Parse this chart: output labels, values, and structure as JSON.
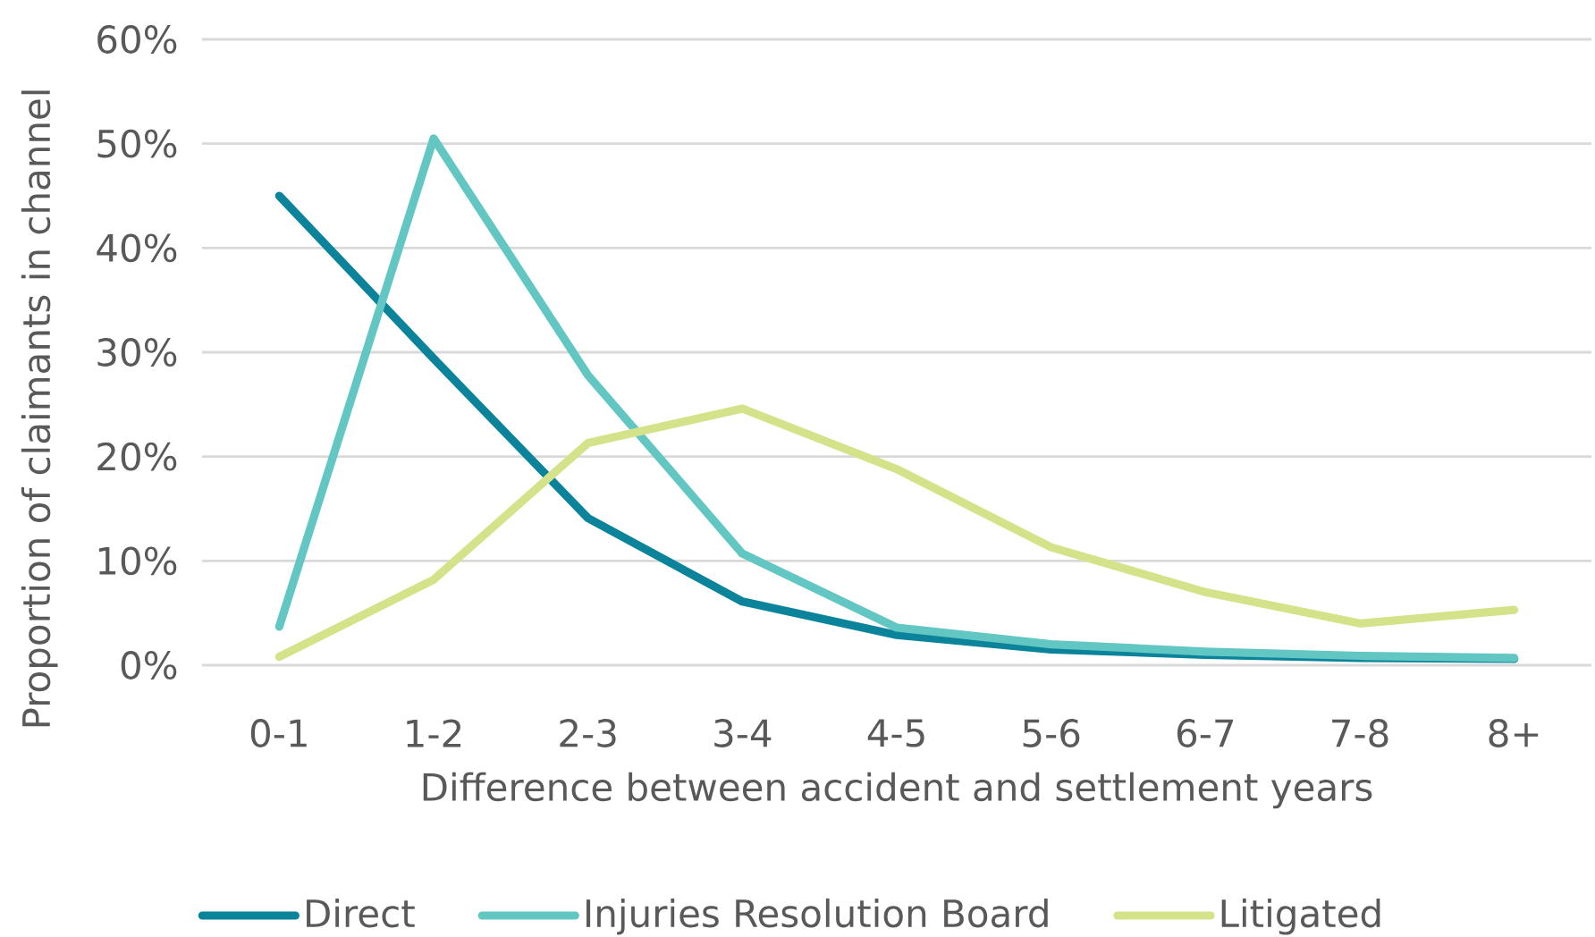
{
  "chart_data": {
    "type": "line",
    "xlabel": "Difference between accident and settlement years",
    "ylabel": "Proportion of claimants in channel",
    "categories": [
      "0-1",
      "1-2",
      "2-3",
      "3-4",
      "4-5",
      "5-6",
      "6-7",
      "7-8",
      "8+"
    ],
    "series": [
      {
        "name": "Direct",
        "color": "#0a839b",
        "values": [
          45.0,
          29.4,
          14.1,
          6.1,
          2.9,
          1.5,
          1.0,
          0.7,
          0.6
        ]
      },
      {
        "name": "Injuries Resolution Board",
        "color": "#62c6c2",
        "values": [
          3.7,
          50.5,
          27.8,
          10.7,
          3.6,
          2.0,
          1.3,
          0.9,
          0.7
        ]
      },
      {
        "name": "Litigated",
        "color": "#d4e389",
        "values": [
          0.8,
          8.2,
          21.3,
          24.6,
          18.8,
          11.3,
          7.0,
          4.0,
          5.3
        ]
      }
    ],
    "ylim": [
      0,
      60
    ],
    "yticks": [
      {
        "value": 0,
        "label": "0%"
      },
      {
        "value": 10,
        "label": "10%"
      },
      {
        "value": 20,
        "label": "20%"
      },
      {
        "value": 30,
        "label": "30%"
      },
      {
        "value": 40,
        "label": "40%"
      },
      {
        "value": 50,
        "label": "50%"
      },
      {
        "value": 60,
        "label": "60%"
      }
    ],
    "grid": "y",
    "legend": "bottom"
  }
}
